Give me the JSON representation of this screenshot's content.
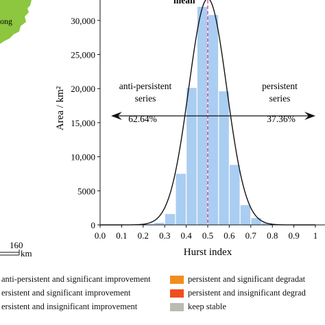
{
  "map_fragment": {
    "place_label": "ong",
    "scale_number": "160",
    "scale_unit": "km",
    "fill_color": "#8dc63f"
  },
  "chart_data": {
    "type": "bar",
    "title": "",
    "xlabel": "Hurst index",
    "ylabel": "Area / km²",
    "xlim": [
      0.0,
      1.0
    ],
    "ylim": [
      0,
      33000
    ],
    "x_ticks": [
      "0.0",
      "0.1",
      "0.2",
      "0.3",
      "0.4",
      "0.5",
      "0.6",
      "0.7",
      "0.8",
      "0.9",
      "1"
    ],
    "y_ticks": [
      {
        "value": 0,
        "label": "0"
      },
      {
        "value": 5000,
        "label": "5000"
      },
      {
        "value": 10000,
        "label": "10,000"
      },
      {
        "value": 15000,
        "label": "15,000"
      },
      {
        "value": 20000,
        "label": "20,000"
      },
      {
        "value": 25000,
        "label": "25,000"
      },
      {
        "value": 30000,
        "label": "30,000"
      }
    ],
    "bin_width": 0.05,
    "bins": [
      {
        "x0": 0.2,
        "value": 100
      },
      {
        "x0": 0.25,
        "value": 300
      },
      {
        "x0": 0.3,
        "value": 1600
      },
      {
        "x0": 0.35,
        "value": 7500
      },
      {
        "x0": 0.4,
        "value": 20100
      },
      {
        "x0": 0.45,
        "value": 32000
      },
      {
        "x0": 0.5,
        "value": 30800
      },
      {
        "x0": 0.55,
        "value": 19600
      },
      {
        "x0": 0.6,
        "value": 8800
      },
      {
        "x0": 0.65,
        "value": 2900
      },
      {
        "x0": 0.7,
        "value": 1000
      },
      {
        "x0": 0.75,
        "value": 250
      }
    ],
    "normal_curve": {
      "mean": 0.5,
      "sd": 0.088,
      "peak": 33200
    },
    "mean_line": {
      "x": 0.5,
      "label": "mean"
    },
    "bar_color": "#aacdf2",
    "curve_color": "#111111",
    "mean_line_color": "#d62f78",
    "annotations": {
      "left_label_1": "anti-persistent",
      "left_label_2": "series",
      "left_percent": "62.64%",
      "right_label_1": "persistent",
      "right_label_2": "series",
      "right_percent": "37.36%",
      "arrow_y": 16000
    }
  },
  "legend": [
    {
      "label": "anti-persistent and significant improvement",
      "color": "#ffffff"
    },
    {
      "label": "persistent and significant degradat",
      "color": "#f28c1e"
    },
    {
      "label": "ersistent and significant improvement",
      "color": "#ffffff"
    },
    {
      "label": "persistent and insignificant degrad",
      "color": "#ef4f1f"
    },
    {
      "label": "ersistent and insignificant improvement",
      "color": "#ffffff"
    },
    {
      "label": "keep stable",
      "color": "#b9bbb4"
    }
  ]
}
